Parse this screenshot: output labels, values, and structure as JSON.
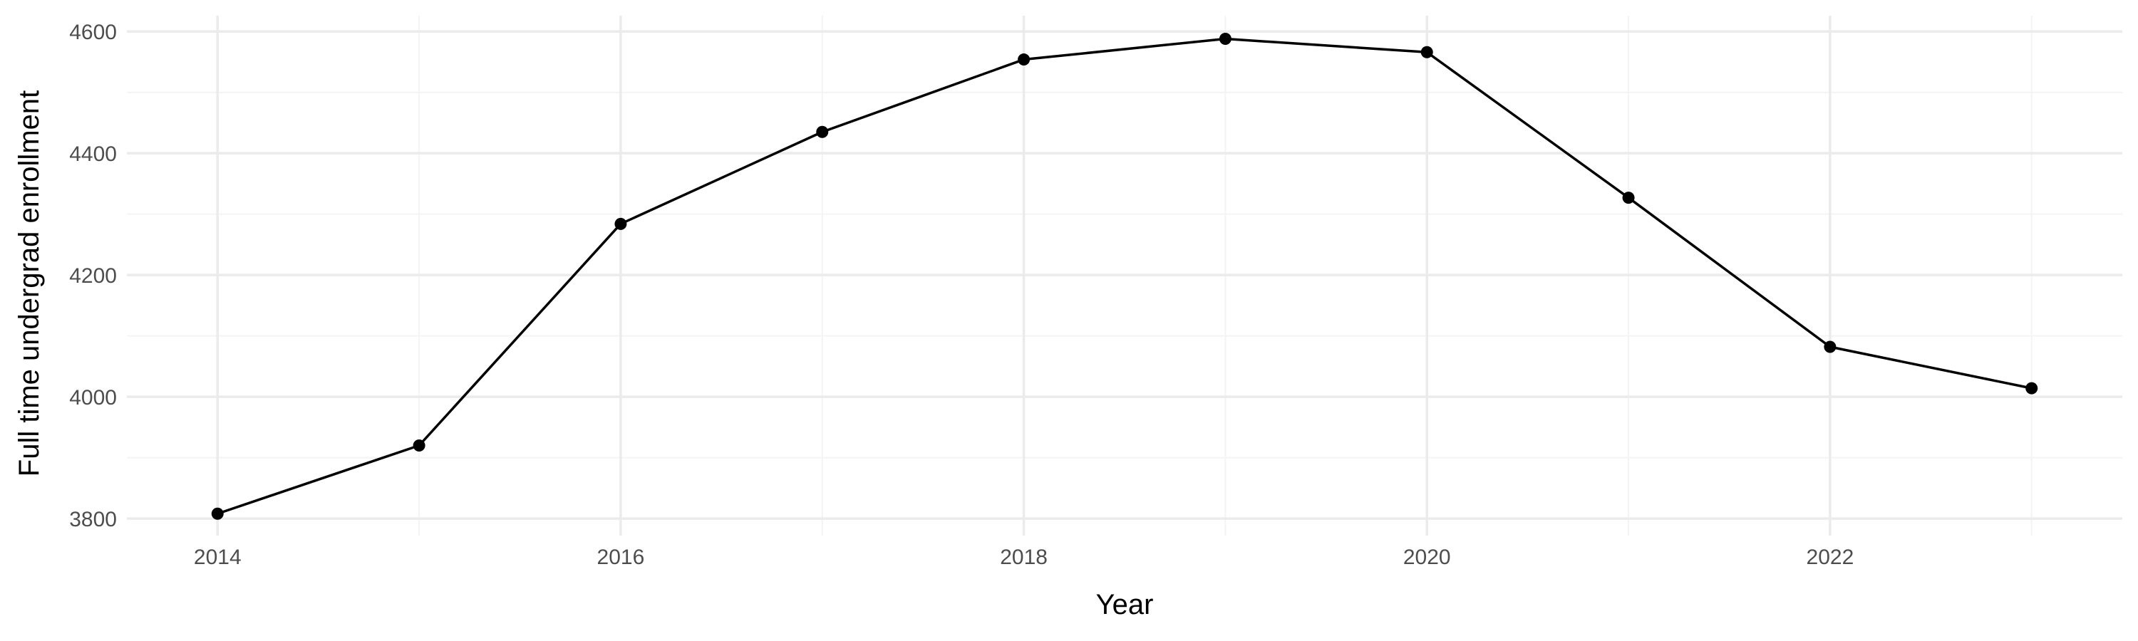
{
  "chart_data": {
    "type": "line",
    "title": "",
    "xlabel": "Year",
    "ylabel": "Full time undergrad enrollment",
    "x": [
      2014,
      2015,
      2016,
      2017,
      2018,
      2019,
      2020,
      2021,
      2022,
      2023
    ],
    "series": [
      {
        "values": [
          3808,
          3920,
          4284,
          4435,
          4554,
          4588,
          4566,
          4327,
          4082,
          4014
        ]
      }
    ],
    "x_ticks": [
      "2014",
      "2016",
      "2018",
      "2020",
      "2022"
    ],
    "y_ticks": [
      "3800",
      "4000",
      "4200",
      "4400",
      "4600"
    ],
    "xlim": [
      2013.55,
      2023.45
    ],
    "ylim": [
      3772,
      4626
    ],
    "grid": true,
    "legend": "none",
    "colors": {
      "line": "#000000",
      "point": "#000000",
      "grid_major": "#ebebeb",
      "grid_minor": "#f4f4f4",
      "tick_text": "#4d4d4d",
      "axis_title": "#000000"
    }
  }
}
